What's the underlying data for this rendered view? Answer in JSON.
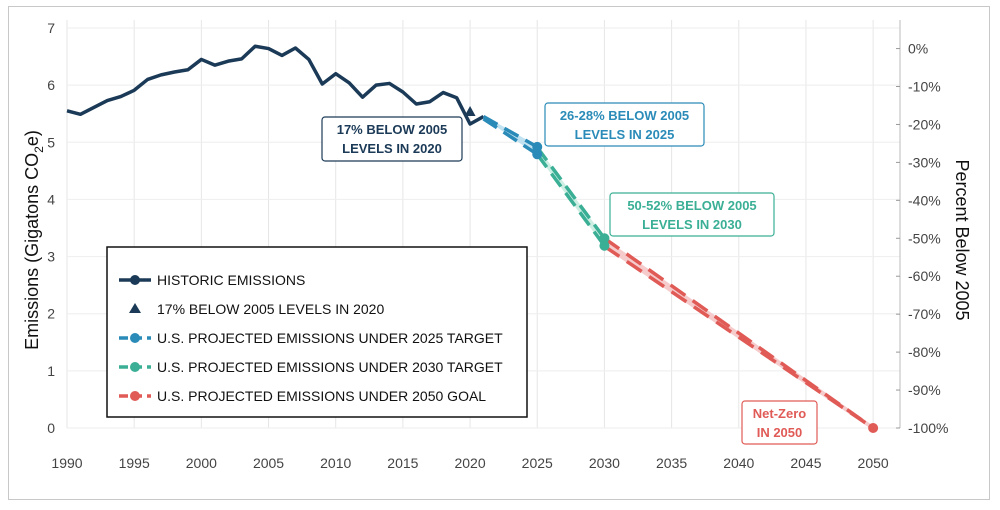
{
  "chart_data": {
    "type": "line",
    "xlabel": "",
    "ylabel_left": "Emissions (Gigatons CO2e)",
    "ylabel_left_parts": [
      "Emissions (Gigatons CO",
      "2",
      "e)"
    ],
    "ylabel_right": "Percent Below 2005",
    "xlim": [
      1990,
      2052
    ],
    "ylim": [
      0,
      7
    ],
    "x_ticks": [
      "1990",
      "1995",
      "2000",
      "2005",
      "2010",
      "2015",
      "2020",
      "2025",
      "2030",
      "2035",
      "2040",
      "2045",
      "2050"
    ],
    "y_ticks_left": [
      "0",
      "1",
      "2",
      "3",
      "4",
      "5",
      "6",
      "7"
    ],
    "y_ticks_right": [
      "0%",
      "-10%",
      "-20%",
      "-30%",
      "-40%",
      "-50%",
      "-60%",
      "-70%",
      "-80%",
      "-90%",
      "-100%"
    ],
    "grid": "vertical and horizontal light gray",
    "colors": {
      "historic": "#1b3a57",
      "target2025": "#2a8bb8",
      "target2030": "#3aaf95",
      "goal2050": "#e05a56",
      "band2025": "#b9dff0",
      "band2030": "#c6ece0",
      "band2050": "#f5c5c6"
    },
    "series": [
      {
        "name": "HISTORIC EMISSIONS",
        "style": "solid",
        "x": [
          1990,
          1991,
          1992,
          1993,
          1994,
          1995,
          1996,
          1997,
          1998,
          1999,
          2000,
          2001,
          2002,
          2003,
          2004,
          2005,
          2006,
          2007,
          2008,
          2009,
          2010,
          2011,
          2012,
          2013,
          2014,
          2015,
          2016,
          2017,
          2018,
          2019,
          2020,
          2021
        ],
        "y": [
          5.55,
          5.49,
          5.61,
          5.73,
          5.8,
          5.91,
          6.1,
          6.18,
          6.23,
          6.27,
          6.45,
          6.35,
          6.42,
          6.46,
          6.68,
          6.64,
          6.52,
          6.65,
          6.45,
          6.02,
          6.2,
          6.04,
          5.79,
          6.0,
          6.03,
          5.88,
          5.67,
          5.71,
          5.87,
          5.78,
          5.32,
          5.45
        ]
      },
      {
        "name": "17% BELOW 2005 LEVELS IN 2020",
        "style": "marker",
        "x": [
          2020
        ],
        "y": [
          5.53
        ]
      },
      {
        "name": "U.S. PROJECTED EMISSIONS UNDER 2025 TARGET",
        "style": "dashed",
        "x": [
          2021,
          2025,
          2025
        ],
        "y": [
          5.45,
          4.92,
          4.79
        ]
      },
      {
        "name": "U.S. PROJECTED EMISSIONS UNDER 2030 TARGET",
        "style": "dashed",
        "x": [
          2025,
          2030,
          2030
        ],
        "y": [
          4.85,
          3.32,
          3.19
        ]
      },
      {
        "name": "U.S. PROJECTED EMISSIONS UNDER 2050 GOAL",
        "style": "dashed",
        "x": [
          2030,
          2050
        ],
        "y": [
          3.25,
          0
        ]
      }
    ],
    "legend": {
      "placement": "bottom-left",
      "items": [
        "HISTORIC EMISSIONS",
        "17% BELOW 2005 LEVELS IN 2020",
        "U.S. PROJECTED EMISSIONS UNDER 2025 TARGET",
        "U.S. PROJECTED EMISSIONS UNDER 2030 TARGET",
        "U.S. PROJECTED EMISSIONS UNDER 2050 GOAL"
      ]
    },
    "annotations": [
      {
        "lines": [
          "17% BELOW 2005",
          "LEVELS IN 2020"
        ],
        "color": "#1b3a57"
      },
      {
        "lines": [
          "26-28% BELOW 2005",
          "LEVELS IN 2025"
        ],
        "color": "#2a8bb8"
      },
      {
        "lines": [
          "50-52% BELOW 2005",
          "LEVELS IN 2030"
        ],
        "color": "#3aaf95"
      },
      {
        "lines": [
          "Net-Zero",
          "IN 2050"
        ],
        "color": "#e05a56"
      }
    ]
  }
}
